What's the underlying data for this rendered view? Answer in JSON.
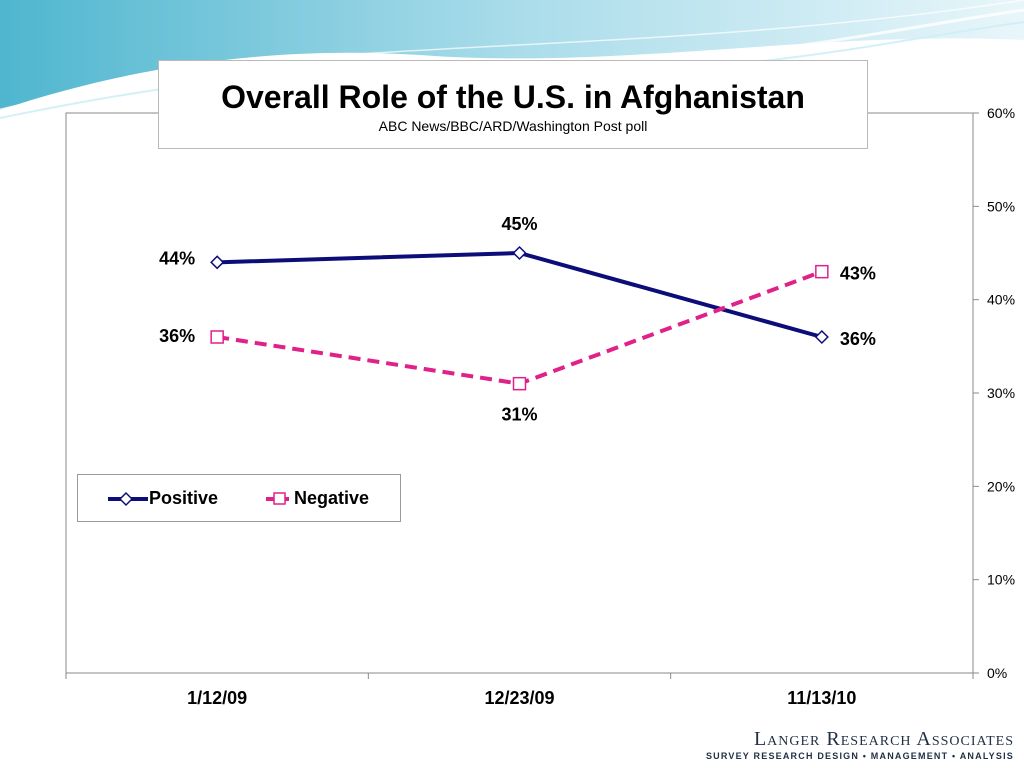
{
  "chart_data": {
    "type": "line",
    "title": "Overall Role of the U.S. in Afghanistan",
    "subtitle": "ABC News/BBC/ARD/Washington Post poll",
    "categories": [
      "1/12/09",
      "12/23/09",
      "11/13/10"
    ],
    "series": [
      {
        "name": "Positive",
        "values": [
          44,
          45,
          36
        ],
        "labels": [
          "44%",
          "45%",
          "36%"
        ],
        "color": "#0d0d7a",
        "style": "solid",
        "marker": "diamond"
      },
      {
        "name": "Negative",
        "values": [
          36,
          31,
          43
        ],
        "labels": [
          "36%",
          "31%",
          "43%"
        ],
        "color": "#e0218a",
        "style": "dashed",
        "marker": "square"
      }
    ],
    "y_ticks": [
      "0%",
      "10%",
      "20%",
      "30%",
      "40%",
      "50%",
      "60%"
    ],
    "ylim": [
      0,
      60
    ],
    "y_axis_position": "right",
    "legend_position": "left",
    "grid": false
  },
  "branding": {
    "name": "Langer Research Associates",
    "tagline": "SURVEY RESEARCH DESIGN • MANAGEMENT • ANALYSIS"
  }
}
